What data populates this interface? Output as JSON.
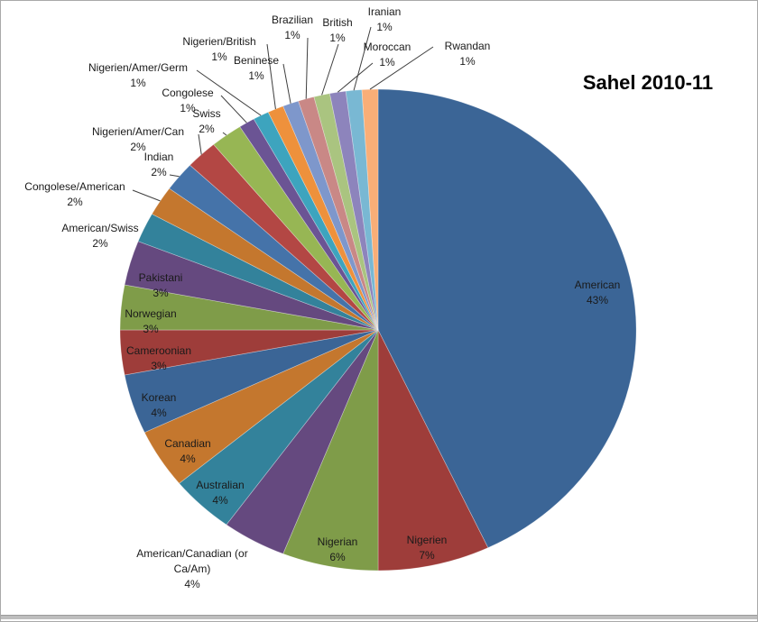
{
  "title": "Sahel 2010-11",
  "chart_data": {
    "type": "pie",
    "title": "Sahel 2010-11",
    "value_unit": "%",
    "start_angle_deg": 0,
    "direction": "clockwise",
    "slices": [
      {
        "label": "American",
        "value": 43,
        "color": "#3B6596"
      },
      {
        "label": "Nigerien",
        "value": 7,
        "color": "#9E3D3A"
      },
      {
        "label": "Nigerian",
        "value": 6,
        "color": "#7F9C49"
      },
      {
        "label": "American/Canadian (or Ca/Am)",
        "value": 4,
        "color": "#65497F"
      },
      {
        "label": "Australian",
        "value": 4,
        "color": "#33829B"
      },
      {
        "label": "Canadian",
        "value": 4,
        "color": "#C4772E"
      },
      {
        "label": "Korean",
        "value": 4,
        "color": "#3B6596"
      },
      {
        "label": "Cameroonian",
        "value": 3,
        "color": "#9E3D3A"
      },
      {
        "label": "Norwegian",
        "value": 3,
        "color": "#7F9C49"
      },
      {
        "label": "Pakistani",
        "value": 3,
        "color": "#65497F"
      },
      {
        "label": "American/Swiss",
        "value": 2,
        "color": "#33829B"
      },
      {
        "label": "Congolese/American",
        "value": 2,
        "color": "#C4772E"
      },
      {
        "label": "Indian",
        "value": 2,
        "color": "#4573A9"
      },
      {
        "label": "Nigerien/Amer/Can",
        "value": 2,
        "color": "#B34744"
      },
      {
        "label": "Swiss",
        "value": 2,
        "color": "#97B654"
      },
      {
        "label": "Congolese",
        "value": 1,
        "color": "#6B5494"
      },
      {
        "label": "Nigerien/Amer/Germ",
        "value": 1,
        "color": "#3DA4BE"
      },
      {
        "label": "Nigerien/British",
        "value": 1,
        "color": "#EE913C"
      },
      {
        "label": "Beninese",
        "value": 1,
        "color": "#7E97CB"
      },
      {
        "label": "Brazilian",
        "value": 1,
        "color": "#C98886"
      },
      {
        "label": "British",
        "value": 1,
        "color": "#AAC480"
      },
      {
        "label": "Moroccan",
        "value": 1,
        "color": "#8D84BC"
      },
      {
        "label": "Iranian",
        "value": 1,
        "color": "#79B8D3"
      },
      {
        "label": "Rwandan",
        "value": 1,
        "color": "#F9AE77"
      }
    ]
  }
}
